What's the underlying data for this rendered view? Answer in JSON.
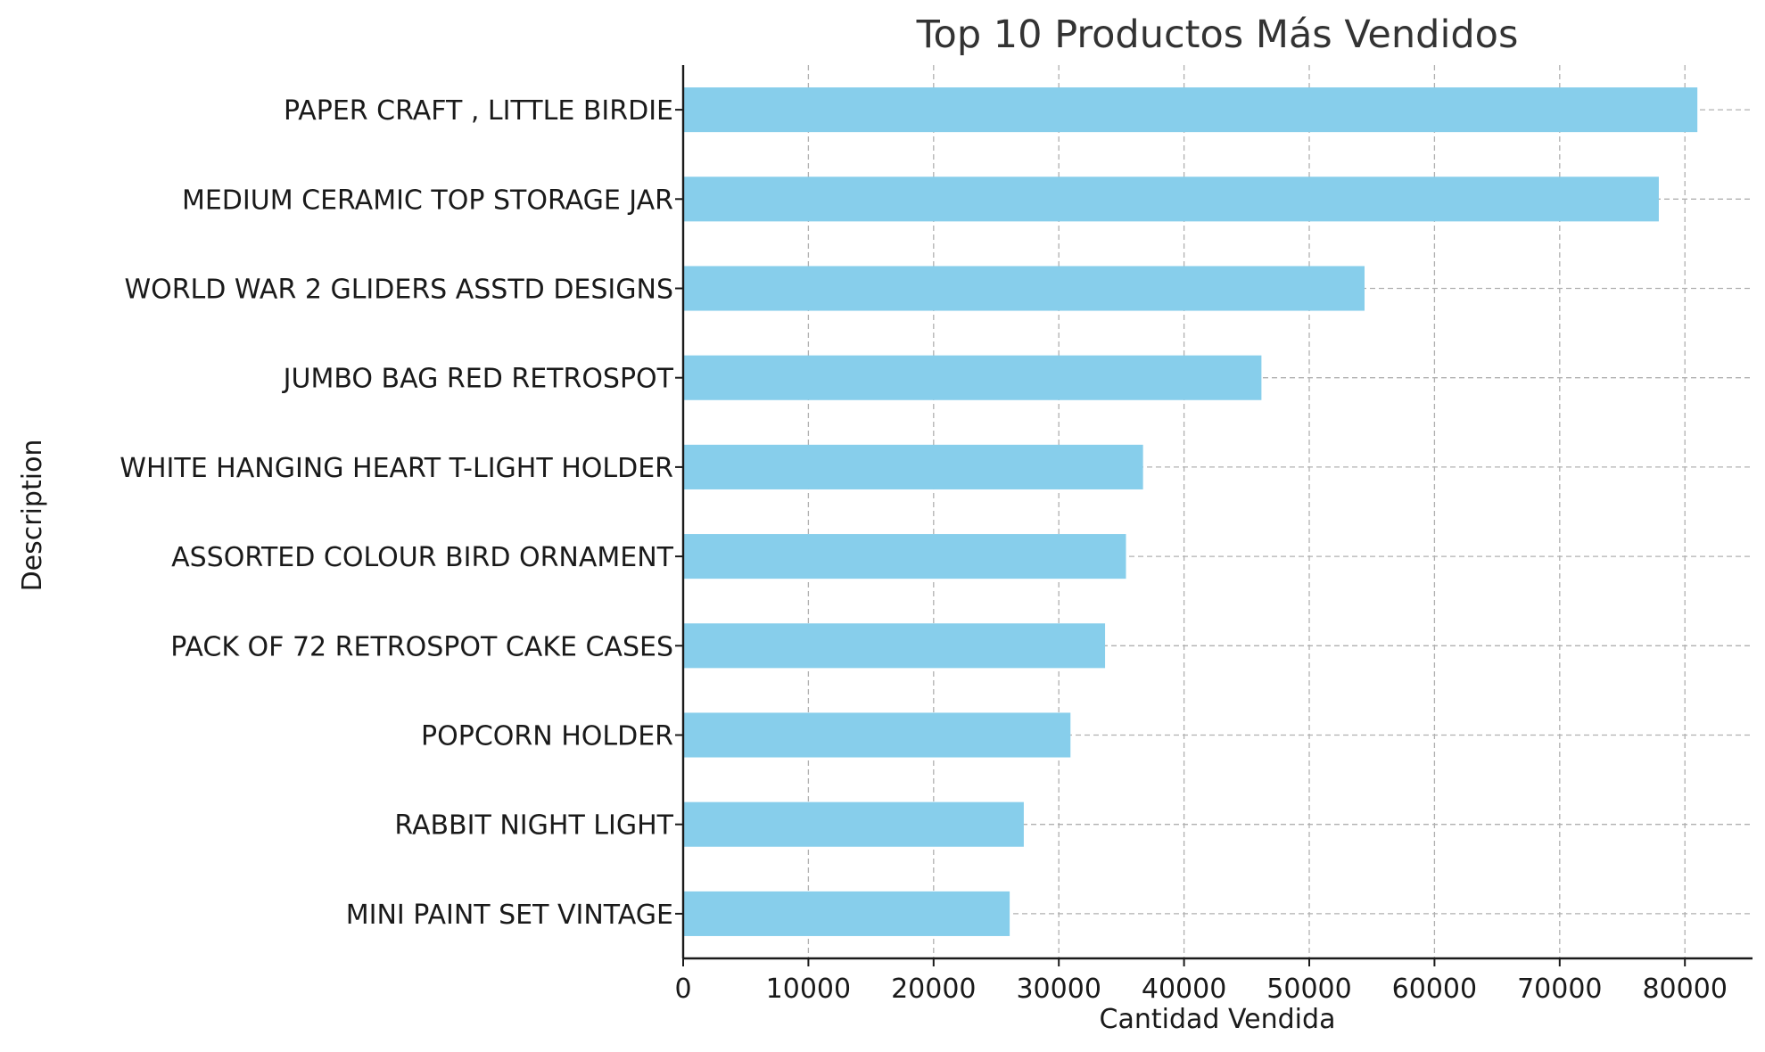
{
  "chart_data": {
    "type": "bar",
    "orientation": "horizontal",
    "title": "Top 10 Productos Más Vendidos",
    "xlabel": "Cantidad Vendida",
    "ylabel": "Description",
    "categories": [
      "PAPER CRAFT , LITTLE BIRDIE",
      "MEDIUM CERAMIC TOP STORAGE JAR",
      "WORLD WAR 2 GLIDERS ASSTD DESIGNS",
      "JUMBO BAG RED RETROSPOT",
      "WHITE HANGING HEART T-LIGHT HOLDER",
      "ASSORTED COLOUR BIRD ORNAMENT",
      "PACK OF 72 RETROSPOT CAKE CASES",
      "POPCORN HOLDER",
      "RABBIT NIGHT LIGHT",
      "MINI PAINT SET VINTAGE "
    ],
    "values": [
      80995,
      77916,
      54415,
      46181,
      36725,
      35362,
      33693,
      30931,
      27202,
      26076
    ],
    "xlim": [
      0,
      85000
    ],
    "xticks": [
      0,
      10000,
      20000,
      30000,
      40000,
      50000,
      60000,
      70000,
      80000
    ],
    "grid": true,
    "legend": "none",
    "bar_color": "#87ceeb"
  }
}
